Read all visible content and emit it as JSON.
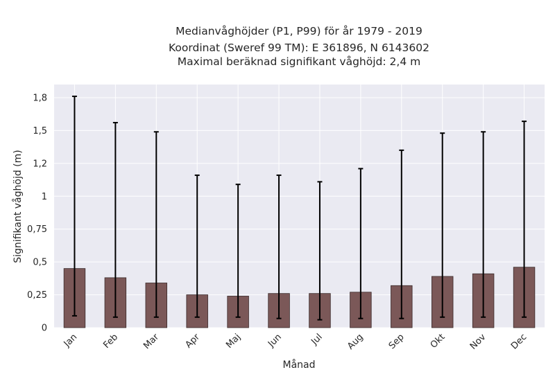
{
  "chart_data": {
    "type": "bar",
    "title_lines": [
      "Medianvåghöjder (P1, P99) för år 1979 - 2019",
      "Koordinat (Sweref 99 TM): E 361896, N 6143602",
      "Maximal beräknad signifikant våghöjd: 2,4 m"
    ],
    "xlabel": "Månad",
    "ylabel": "Signifikant våghöjd (m)",
    "categories": [
      "Jan",
      "Feb",
      "Mar",
      "Apr",
      "Maj",
      "Jun",
      "Jul",
      "Aug",
      "Sep",
      "Okt",
      "Nov",
      "Dec"
    ],
    "values": [
      0.45,
      0.38,
      0.34,
      0.25,
      0.24,
      0.26,
      0.26,
      0.27,
      0.32,
      0.39,
      0.41,
      0.46
    ],
    "p1": [
      0.09,
      0.08,
      0.08,
      0.08,
      0.08,
      0.07,
      0.06,
      0.07,
      0.07,
      0.08,
      0.08,
      0.08
    ],
    "p99": [
      1.76,
      1.56,
      1.49,
      1.16,
      1.09,
      1.16,
      1.11,
      1.21,
      1.35,
      1.48,
      1.49,
      1.57
    ],
    "ylim": [
      0,
      1.85
    ],
    "yticks": [
      0,
      0.25,
      0.5,
      0.75,
      1,
      1.25,
      1.5,
      1.75
    ],
    "ytick_labels": [
      "0",
      "0,25",
      "0,5",
      "0,75",
      "1",
      "1,2",
      "1,5",
      "1,8"
    ],
    "grid": true,
    "colors": {
      "bar_fill": "#7b5858",
      "bar_edge": "#3a2a2a",
      "error_bar": "#000000",
      "plot_background": "#eaeaf2",
      "grid": "#ffffff"
    }
  }
}
